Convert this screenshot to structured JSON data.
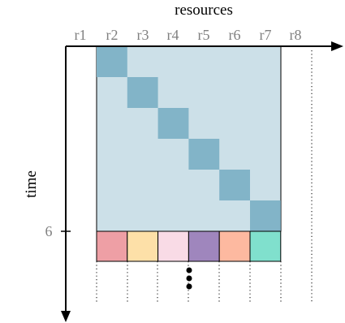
{
  "diagram": {
    "x_axis_title": "resources",
    "y_axis_title": "time",
    "columns": [
      "r1",
      "r2",
      "r3",
      "r4",
      "r5",
      "r6",
      "r7",
      "r8"
    ],
    "time_marker_label": "6",
    "colors": {
      "axis": "#000000",
      "tick_label": "#808080",
      "background_block": "#cce0e8",
      "diagonal_cell": "#82b4c8",
      "grid_line": "#000000",
      "dots": "#000000"
    },
    "bottom_row_colors": [
      "#ee9fa5",
      "#fde0a8",
      "#f9dbe6",
      "#9f86bd",
      "#fdb9a0",
      "#80e0cd"
    ],
    "continuation": "dots"
  }
}
